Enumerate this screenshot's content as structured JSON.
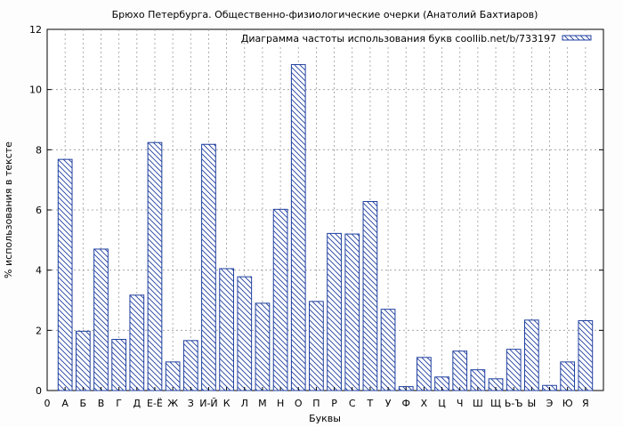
{
  "chart_data": {
    "type": "bar",
    "title": "Брюхо Петербурга. Общественно-физиологические очерки (Анатолий Бахтиаров)",
    "xlabel": "Буквы",
    "ylabel": "% использования в тексте",
    "ylim": [
      0,
      12
    ],
    "yticks": [
      "0",
      "2",
      "4",
      "6",
      "8",
      "10",
      "12"
    ],
    "x_start_label": "0",
    "grid": true,
    "legend_position": "top-right",
    "series": [
      {
        "name": "Диаграмма частоты использования букв coollib.net/b/733197",
        "color": "#1f3f9f",
        "values": [
          7.68,
          1.97,
          4.7,
          1.7,
          3.17,
          8.24,
          0.95,
          1.66,
          8.18,
          4.05,
          3.78,
          2.9,
          6.02,
          10.83,
          2.96,
          5.22,
          5.2,
          6.28,
          2.7,
          0.13,
          1.1,
          0.45,
          1.31,
          0.69,
          0.39,
          1.37,
          2.34,
          0.17,
          0.95,
          2.32
        ]
      }
    ],
    "categories": [
      "А",
      "Б",
      "В",
      "Г",
      "Д",
      "Е-Ё",
      "Ж",
      "З",
      "И-Й",
      "К",
      "Л",
      "М",
      "Н",
      "О",
      "П",
      "Р",
      "С",
      "Т",
      "У",
      "Ф",
      "Х",
      "Ц",
      "Ч",
      "Ш",
      "Щ",
      "Ь-Ъ",
      "Ы",
      "Э",
      "Ю",
      "Я"
    ]
  }
}
